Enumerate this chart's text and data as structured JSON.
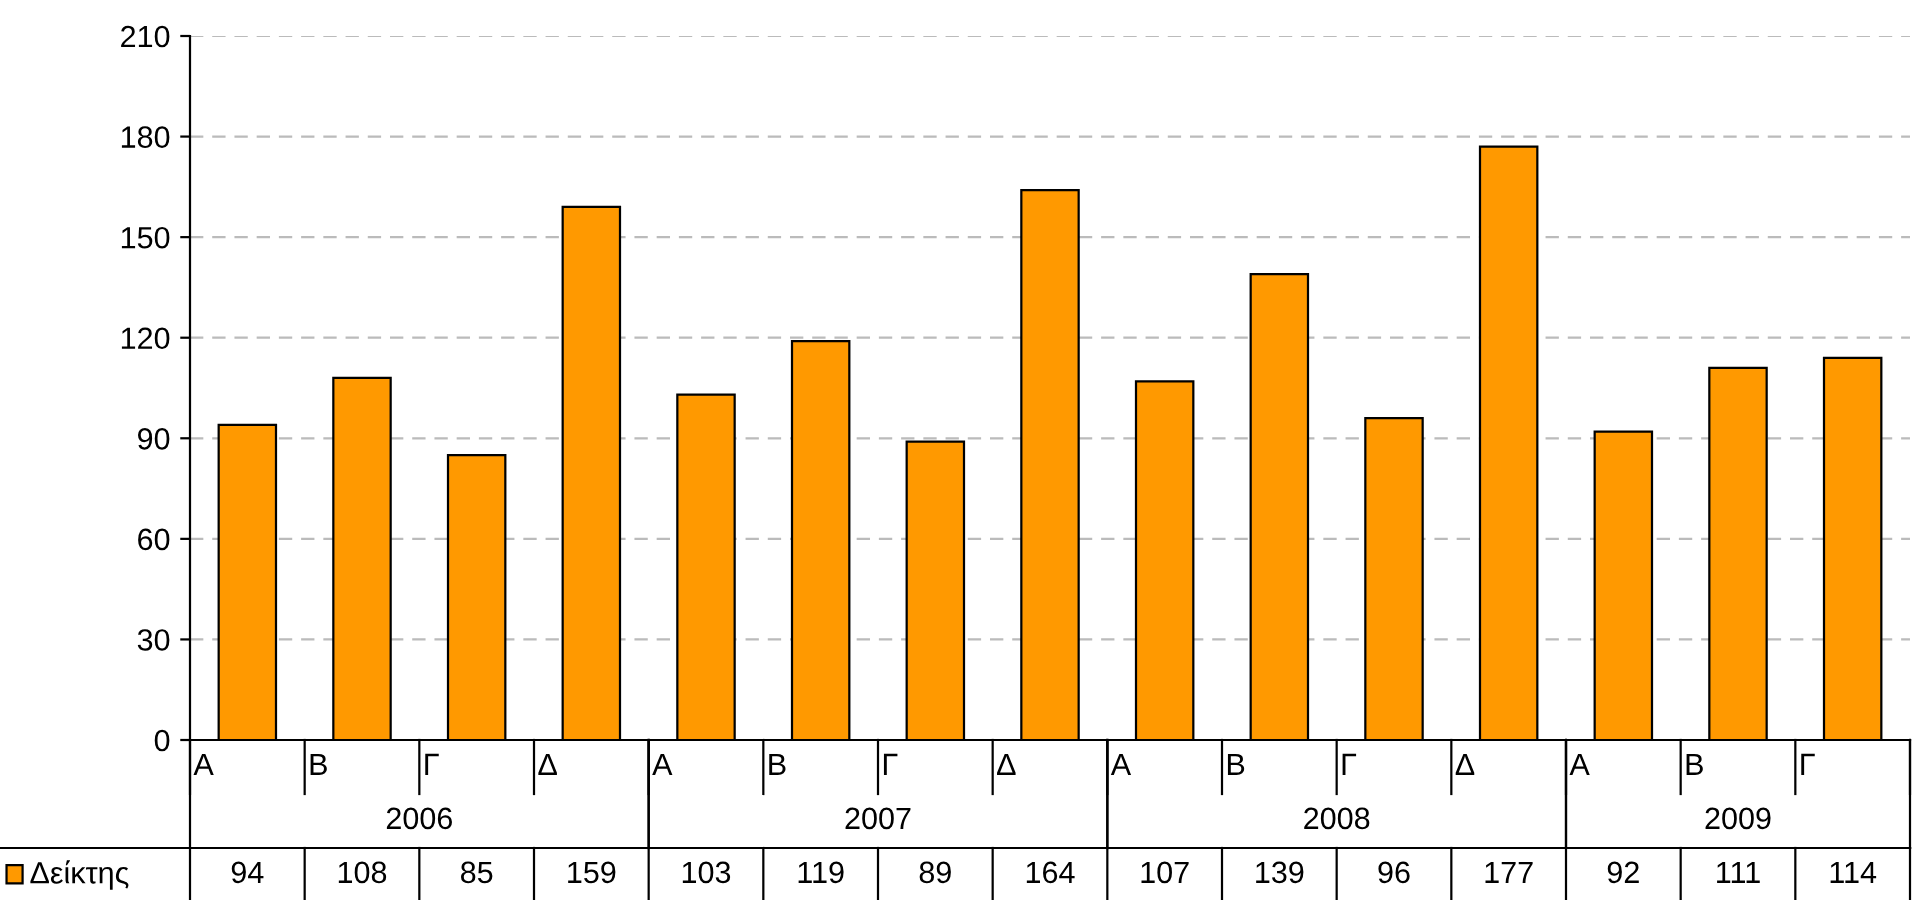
{
  "chart_data": {
    "type": "bar",
    "categories": [
      "Α",
      "Β",
      "Γ",
      "Δ",
      "Α",
      "Β",
      "Γ",
      "Δ",
      "Α",
      "Β",
      "Γ",
      "Δ",
      "Α",
      "Β",
      "Γ"
    ],
    "series": [
      {
        "name": "Δείκτης",
        "color": "#ff9900",
        "values": [
          94,
          108,
          85,
          159,
          103,
          119,
          89,
          164,
          107,
          139,
          96,
          177,
          92,
          111,
          114
        ]
      }
    ],
    "annotations": [
      "2006",
      "2007",
      "2008",
      "2009"
    ],
    "ylim": [
      0,
      210
    ],
    "yticks": [
      0,
      30,
      60,
      90,
      120,
      150,
      180,
      210
    ],
    "grid": "y",
    "legend": "bottom",
    "data_labels": true
  }
}
